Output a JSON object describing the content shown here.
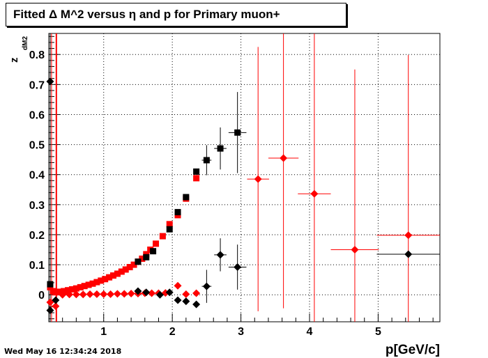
{
  "chart_data": {
    "type": "scatter",
    "title": "Fitted Δ M^2 versus η and p for Primary muon+",
    "xlabel": "p[GeV/c]",
    "ylabel": "z",
    "ylabel_sub": "dM2",
    "xlim": [
      0.2,
      5.9
    ],
    "ylim": [
      -0.09,
      0.87
    ],
    "x_ticks": [
      {
        "value": 1,
        "label": "1"
      },
      {
        "value": 2,
        "label": "2"
      },
      {
        "value": 3,
        "label": "3"
      },
      {
        "value": 4,
        "label": "4"
      },
      {
        "value": 5,
        "label": "5"
      }
    ],
    "y_ticks": [
      {
        "value": 0,
        "label": "0"
      },
      {
        "value": 0.1,
        "label": "0.1"
      },
      {
        "value": 0.2,
        "label": "0.2"
      },
      {
        "value": 0.3,
        "label": "0.3"
      },
      {
        "value": 0.4,
        "label": "0.4"
      },
      {
        "value": 0.5,
        "label": "0.5"
      },
      {
        "value": 0.6,
        "label": "0.6"
      },
      {
        "value": 0.7,
        "label": "0.7"
      },
      {
        "value": 0.8,
        "label": "0.8"
      }
    ],
    "grid": true,
    "series": [
      {
        "color": "#ff0000",
        "marker": "square",
        "points": [
          {
            "x": 0.22,
            "y": 0.025
          },
          {
            "x": 0.26,
            "y": 0.012
          },
          {
            "x": 0.3,
            "y": 0.008
          },
          {
            "x": 0.36,
            "y": 0.01
          },
          {
            "x": 0.42,
            "y": 0.012
          },
          {
            "x": 0.48,
            "y": 0.015
          },
          {
            "x": 0.54,
            "y": 0.018
          },
          {
            "x": 0.6,
            "y": 0.021
          },
          {
            "x": 0.66,
            "y": 0.025
          },
          {
            "x": 0.72,
            "y": 0.029
          },
          {
            "x": 0.78,
            "y": 0.033
          },
          {
            "x": 0.84,
            "y": 0.037
          },
          {
            "x": 0.9,
            "y": 0.042
          },
          {
            "x": 0.96,
            "y": 0.047
          },
          {
            "x": 1.02,
            "y": 0.052
          },
          {
            "x": 1.08,
            "y": 0.058
          },
          {
            "x": 1.14,
            "y": 0.064
          },
          {
            "x": 1.2,
            "y": 0.07
          },
          {
            "x": 1.26,
            "y": 0.077
          },
          {
            "x": 1.32,
            "y": 0.084
          },
          {
            "x": 1.38,
            "y": 0.092
          },
          {
            "x": 1.44,
            "y": 0.1
          },
          {
            "x": 1.5,
            "y": 0.11
          },
          {
            "x": 1.56,
            "y": 0.12
          },
          {
            "x": 1.62,
            "y": 0.135
          },
          {
            "x": 1.68,
            "y": 0.15
          },
          {
            "x": 1.76,
            "y": 0.17
          },
          {
            "x": 1.86,
            "y": 0.195
          },
          {
            "x": 1.96,
            "y": 0.235
          },
          {
            "x": 2.08,
            "y": 0.265
          },
          {
            "x": 2.2,
            "y": 0.32
          },
          {
            "x": 2.35,
            "y": 0.388
          }
        ]
      },
      {
        "color": "#000000",
        "marker": "square",
        "points": [
          {
            "x": 0.22,
            "y": 0.035
          },
          {
            "x": 1.5,
            "y": 0.11
          },
          {
            "x": 1.62,
            "y": 0.125
          },
          {
            "x": 1.72,
            "y": 0.145
          },
          {
            "x": 1.96,
            "y": 0.218
          },
          {
            "x": 2.08,
            "y": 0.275
          },
          {
            "x": 2.2,
            "y": 0.325
          },
          {
            "x": 2.35,
            "y": 0.41
          },
          {
            "x": 2.5,
            "y": 0.448,
            "yerr": 0.05,
            "xerr": 0.07
          },
          {
            "x": 2.7,
            "y": 0.487,
            "yerr": 0.07,
            "xerr": 0.09
          },
          {
            "x": 2.95,
            "y": 0.54,
            "yerr": 0.135,
            "xerr": 0.13
          }
        ]
      },
      {
        "color": "#ff0000",
        "marker": "diamond",
        "points": [
          {
            "x": 0.22,
            "y": -0.025
          },
          {
            "x": 0.3,
            "y": -0.038
          },
          {
            "x": 0.4,
            "y": 0.0
          },
          {
            "x": 0.5,
            "y": 0.001
          },
          {
            "x": 0.6,
            "y": 0.001
          },
          {
            "x": 0.7,
            "y": 0.001
          },
          {
            "x": 0.8,
            "y": 0.002
          },
          {
            "x": 0.9,
            "y": 0.002
          },
          {
            "x": 1.0,
            "y": 0.002
          },
          {
            "x": 1.1,
            "y": 0.002
          },
          {
            "x": 1.2,
            "y": 0.003
          },
          {
            "x": 1.3,
            "y": 0.003
          },
          {
            "x": 1.4,
            "y": 0.004
          },
          {
            "x": 1.5,
            "y": 0.004
          },
          {
            "x": 1.6,
            "y": 0.005
          },
          {
            "x": 1.7,
            "y": 0.005
          },
          {
            "x": 1.8,
            "y": 0.005
          },
          {
            "x": 1.9,
            "y": 0.006
          },
          {
            "x": 2.08,
            "y": 0.03
          },
          {
            "x": 2.2,
            "y": 0.002
          },
          {
            "x": 2.35,
            "y": 0.005
          },
          {
            "x": 3.25,
            "y": 0.385,
            "yerr": 0.44,
            "xerr": 0.16
          },
          {
            "x": 3.62,
            "y": 0.455,
            "yerr": 0.5,
            "xerr": 0.22
          },
          {
            "x": 4.07,
            "y": 0.336,
            "yerr": 0.6,
            "xerr": 0.24
          },
          {
            "x": 4.66,
            "y": 0.15,
            "yerr": 0.6,
            "xerr": 0.35
          },
          {
            "x": 5.44,
            "y": 0.198,
            "yerr": 0.6,
            "xerr": 0.46
          }
        ]
      },
      {
        "color": "#000000",
        "marker": "diamond",
        "points": [
          {
            "x": 0.22,
            "y": 0.71
          },
          {
            "x": 0.22,
            "y": -0.052
          },
          {
            "x": 0.3,
            "y": -0.018
          },
          {
            "x": 1.5,
            "y": 0.012
          },
          {
            "x": 1.62,
            "y": 0.008
          },
          {
            "x": 1.82,
            "y": 0.0
          },
          {
            "x": 1.96,
            "y": 0.008
          },
          {
            "x": 2.08,
            "y": -0.018
          },
          {
            "x": 2.2,
            "y": -0.022
          },
          {
            "x": 2.35,
            "y": -0.032
          },
          {
            "x": 2.5,
            "y": 0.028,
            "yerr": 0.055,
            "xerr": 0.07
          },
          {
            "x": 2.7,
            "y": 0.133,
            "yerr": 0.055,
            "xerr": 0.09
          },
          {
            "x": 2.95,
            "y": 0.092,
            "yerr": 0.075,
            "xerr": 0.13
          },
          {
            "x": 5.44,
            "y": 0.135,
            "yerr": 0,
            "xerr": 0.46
          }
        ]
      }
    ]
  },
  "footer": {
    "timestamp": "Wed May 16 12:34:24 2018"
  }
}
